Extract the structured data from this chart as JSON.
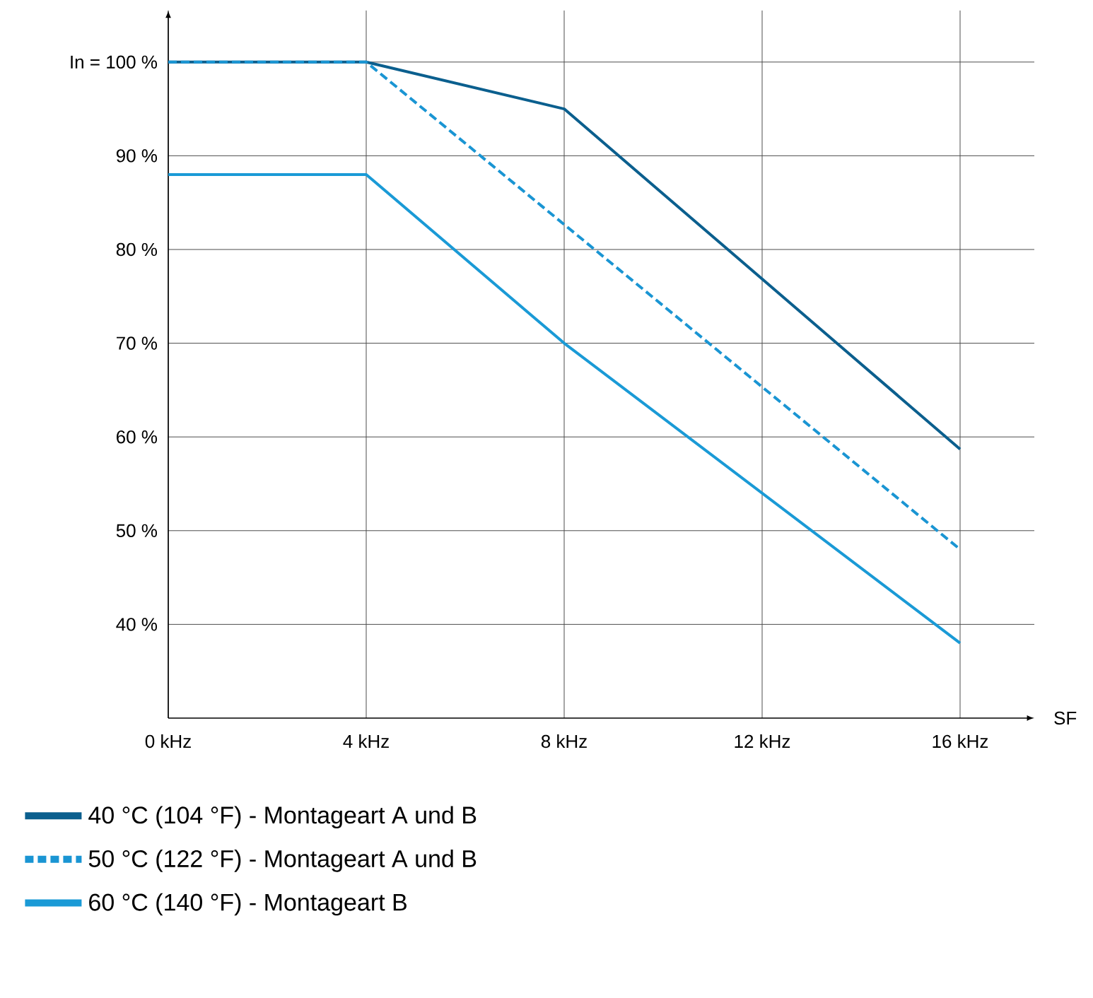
{
  "chart_data": {
    "type": "line",
    "xlabel": "SF",
    "xlim": [
      0,
      17.5
    ],
    "ylim": [
      30,
      105.5
    ],
    "xticks": [
      {
        "value": 0,
        "label": "0 kHz"
      },
      {
        "value": 4,
        "label": "4 kHz"
      },
      {
        "value": 8,
        "label": "8 kHz"
      },
      {
        "value": 12,
        "label": "12 kHz"
      },
      {
        "value": 16,
        "label": "16 kHz"
      }
    ],
    "yticks": [
      {
        "value": 40,
        "label": "40 %"
      },
      {
        "value": 50,
        "label": "50 %"
      },
      {
        "value": 60,
        "label": "60 %"
      },
      {
        "value": 70,
        "label": "70 %"
      },
      {
        "value": 80,
        "label": "80 %"
      },
      {
        "value": 90,
        "label": "90 %"
      },
      {
        "value": 100,
        "label": "In = 100 %"
      }
    ],
    "grid": true,
    "legend": "bottom",
    "marker": "none",
    "series": [
      {
        "name": "40 °C (104 °F) - Montageart A und B",
        "color": "#0b5f8e",
        "x": [
          0,
          4,
          8,
          16
        ],
        "values": [
          100,
          100,
          95,
          58.7
        ],
        "line_style": "solid"
      },
      {
        "name": "50 °C (122 °F) - Montageart A und B",
        "color": "#1a95d3",
        "x": [
          0,
          4,
          16
        ],
        "values": [
          100,
          100,
          48
        ],
        "line_style": "dashed"
      },
      {
        "name": "60 °C (140 °F) - Montageart B",
        "color": "#1a9ad6",
        "x": [
          0,
          4,
          8,
          16
        ],
        "values": [
          88,
          88,
          70,
          38
        ],
        "line_style": "solid"
      }
    ]
  }
}
